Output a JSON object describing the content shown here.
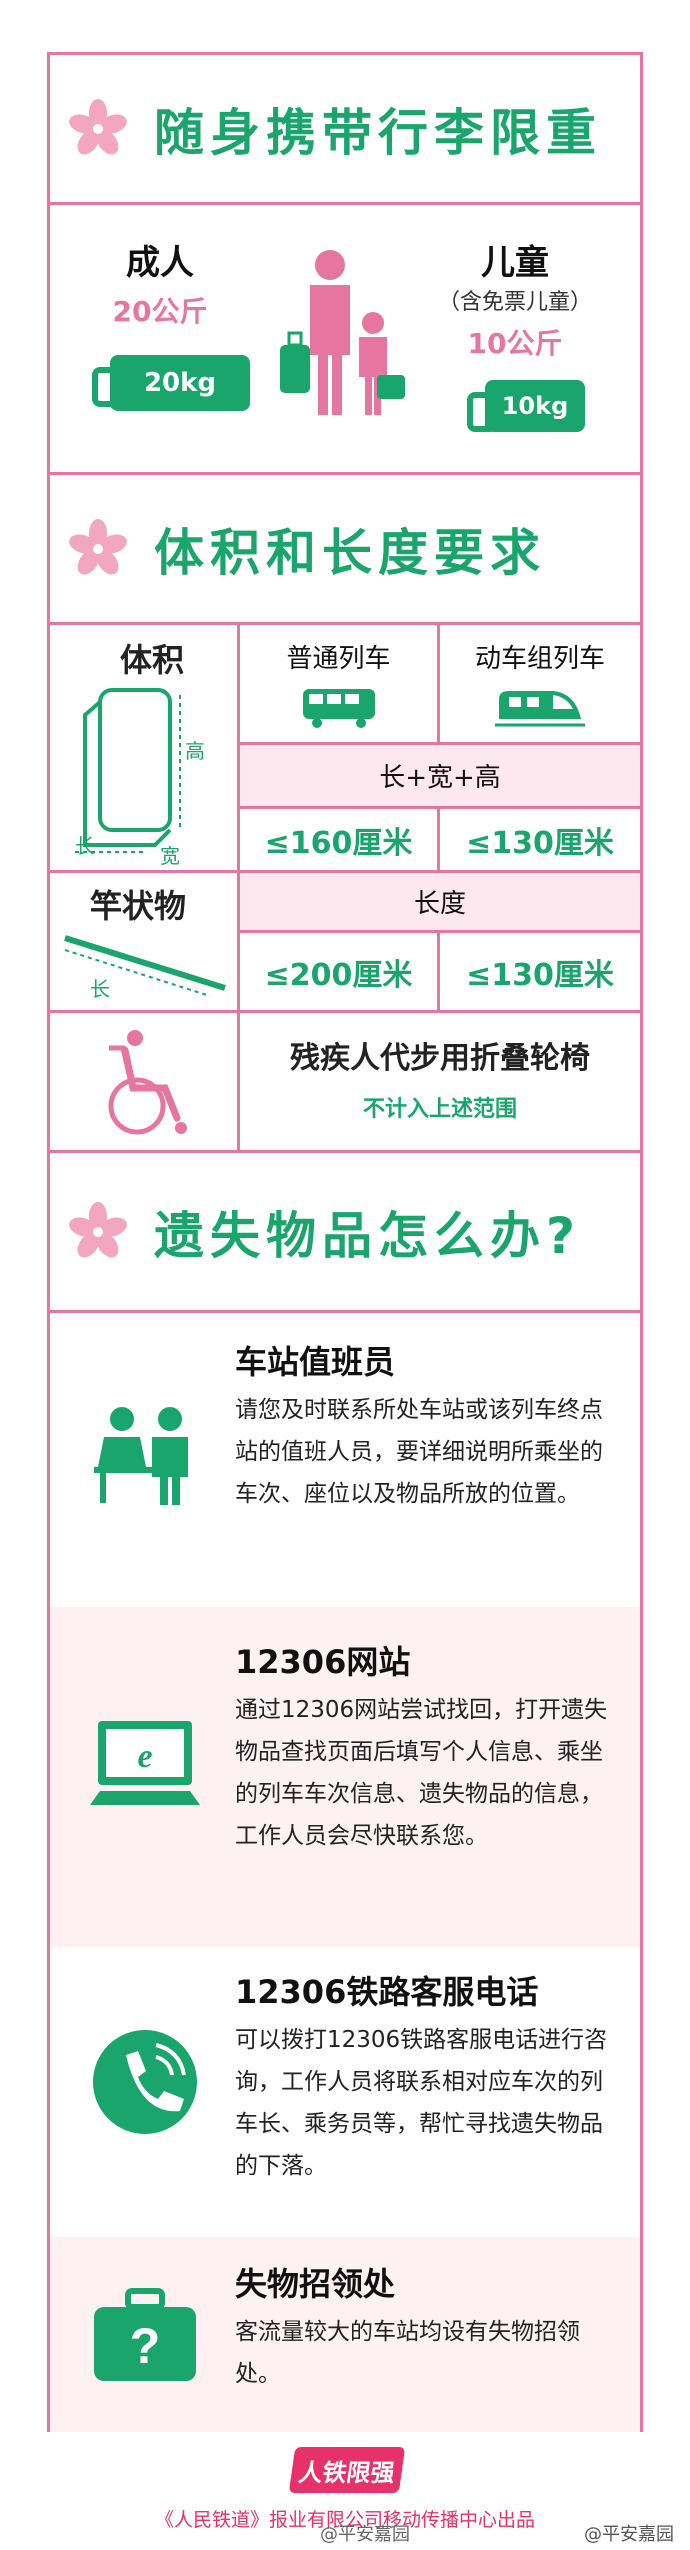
{
  "section1": {
    "title": "随身携带行李限重"
  },
  "adult": {
    "name": "成人",
    "limit": "20公斤",
    "tag": "20kg"
  },
  "child": {
    "name": "儿童",
    "note": "（含免票儿童）",
    "limit": "10公斤",
    "tag": "10kg"
  },
  "section2": {
    "title": "体积和长度要求"
  },
  "volume": {
    "label": "体积",
    "height_label": "高",
    "length_label": "长",
    "width_label": "宽",
    "col_normal": "普通列车",
    "col_emu": "动车组列车",
    "measure": "长+宽+高",
    "normal_limit": "≤160厘米",
    "emu_limit": "≤130厘米"
  },
  "rod": {
    "label": "竿状物",
    "length_label": "长",
    "measure": "长度",
    "normal_limit": "≤200厘米",
    "emu_limit": "≤130厘米"
  },
  "wheelchair": {
    "title": "残疾人代步用折叠轮椅",
    "note": "不计入上述范围"
  },
  "section3": {
    "title": "遗失物品怎么办?"
  },
  "items": [
    {
      "title": "车站值班员",
      "text": "请您及时联系所处车站或该列车终点站的值班人员，要详细说明所乘坐的车次、座位以及物品所放的位置。"
    },
    {
      "title": "12306网站",
      "text": "通过12306网站尝试找回，打开遗失物品查找页面后填写个人信息、乘坐的列车车次信息、遗失物品的信息，工作人员会尽快联系您。"
    },
    {
      "title": "12306铁路客服电话",
      "text": "可以拨打12306铁路客服电话进行咨询，工作人员将联系相对应车次的列车长、乘务员等，帮忙寻找遗失物品的下落。"
    },
    {
      "title": "失物招领处",
      "text": "客流量较大的车站均设有失物招领处。"
    }
  ],
  "footer": {
    "logo": "人铁限强",
    "credit": "《人民铁道》报业有限公司移动传播中心出品"
  },
  "watermark": {
    "left": "@平安嘉园",
    "right": "@平安嘉园"
  },
  "colors": {
    "pink": "#e6769f",
    "green": "#1aa56d",
    "light_pink": "#fde8ef"
  }
}
